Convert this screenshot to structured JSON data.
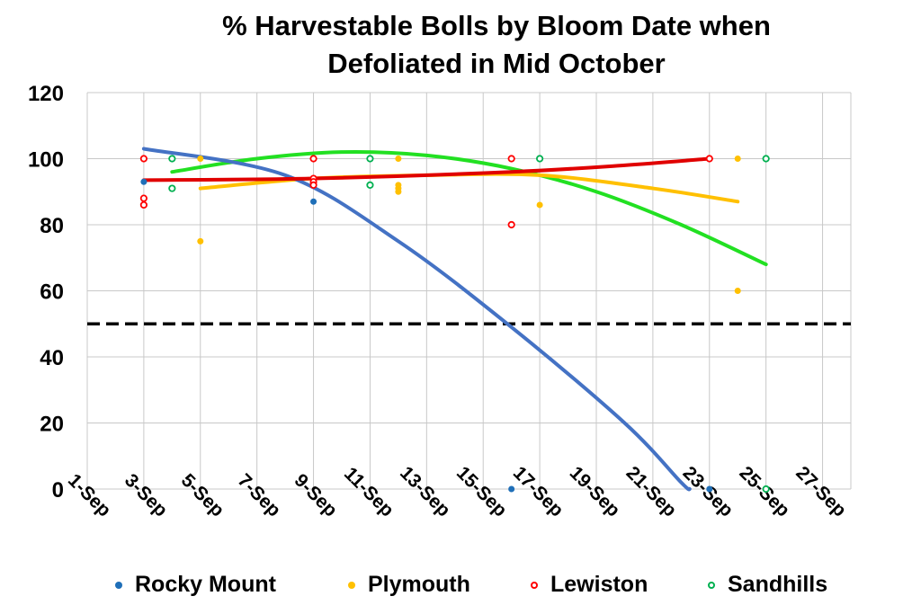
{
  "chart_data": {
    "type": "scatter",
    "title_lines": [
      "% Harvestable Bolls by Bloom Date when",
      "Defoliated in Mid October"
    ],
    "xlabel": "",
    "ylabel": "",
    "ylim": [
      0,
      120
    ],
    "y_ticks": [
      "0",
      "20",
      "40",
      "60",
      "80",
      "100",
      "120"
    ],
    "x_tick_labels": [
      "1-Sep",
      "3-Sep",
      "5-Sep",
      "7-Sep",
      "9-Sep",
      "11-Sep",
      "13-Sep",
      "15-Sep",
      "17-Sep",
      "19-Sep",
      "21-Sep",
      "23-Sep",
      "25-Sep",
      "27-Sep"
    ],
    "grid": true,
    "legend_position": "bottom",
    "reference_line": {
      "y": 50,
      "style": "dashed",
      "color": "#000000"
    },
    "series": [
      {
        "name": "Rocky Mount",
        "color": "#1f6fb8",
        "marker": "filled-circle",
        "trend_color": "#4472c4",
        "points": [
          {
            "x": "3-Sep",
            "y": 93
          },
          {
            "x": "9-Sep",
            "y": 87
          },
          {
            "x": "16-Sep",
            "y": 0
          },
          {
            "x": "23-Sep",
            "y": 0
          }
        ],
        "trend": [
          {
            "x": "3-Sep",
            "y": 103
          },
          {
            "x": "8-Sep",
            "y": 95
          },
          {
            "x": "12-Sep",
            "y": 75
          },
          {
            "x": "16-Sep",
            "y": 49
          },
          {
            "x": "20-Sep",
            "y": 20
          },
          {
            "x": "22-Sep",
            "y": 2
          },
          {
            "x": "22.3-Sep",
            "y": 0
          }
        ]
      },
      {
        "name": "Plymouth",
        "color": "#ffc000",
        "marker": "filled-circle",
        "trend_color": "#ffc000",
        "points": [
          {
            "x": "5-Sep",
            "y": 100
          },
          {
            "x": "5-Sep",
            "y": 75
          },
          {
            "x": "9-Sep",
            "y": 93
          },
          {
            "x": "12-Sep",
            "y": 100
          },
          {
            "x": "12-Sep",
            "y": 92
          },
          {
            "x": "12-Sep",
            "y": 91
          },
          {
            "x": "12-Sep",
            "y": 90
          },
          {
            "x": "17-Sep",
            "y": 86
          },
          {
            "x": "24-Sep",
            "y": 100
          },
          {
            "x": "24-Sep",
            "y": 60
          }
        ],
        "trend": [
          {
            "x": "5-Sep",
            "y": 91
          },
          {
            "x": "9-Sep",
            "y": 94
          },
          {
            "x": "13-Sep",
            "y": 95
          },
          {
            "x": "17-Sep",
            "y": 95
          },
          {
            "x": "21-Sep",
            "y": 91
          },
          {
            "x": "24-Sep",
            "y": 87
          }
        ]
      },
      {
        "name": "Lewiston",
        "color": "#ff0000",
        "marker": "open-circle",
        "trend_color": "#e00000",
        "points": [
          {
            "x": "3-Sep",
            "y": 100
          },
          {
            "x": "3-Sep",
            "y": 88
          },
          {
            "x": "3-Sep",
            "y": 86
          },
          {
            "x": "9-Sep",
            "y": 100
          },
          {
            "x": "9-Sep",
            "y": 94
          },
          {
            "x": "9-Sep",
            "y": 93
          },
          {
            "x": "9-Sep",
            "y": 92
          },
          {
            "x": "16-Sep",
            "y": 100
          },
          {
            "x": "16-Sep",
            "y": 80
          },
          {
            "x": "23-Sep",
            "y": 100
          }
        ],
        "trend": [
          {
            "x": "3-Sep",
            "y": 93.5
          },
          {
            "x": "9-Sep",
            "y": 94
          },
          {
            "x": "16-Sep",
            "y": 96
          },
          {
            "x": "20-Sep",
            "y": 98
          },
          {
            "x": "23-Sep",
            "y": 100
          }
        ]
      },
      {
        "name": "Sandhills",
        "color": "#00b050",
        "marker": "open-circle",
        "trend_color": "#22e022",
        "points": [
          {
            "x": "4-Sep",
            "y": 100
          },
          {
            "x": "4-Sep",
            "y": 91
          },
          {
            "x": "11-Sep",
            "y": 100
          },
          {
            "x": "11-Sep",
            "y": 92
          },
          {
            "x": "17-Sep",
            "y": 100
          },
          {
            "x": "25-Sep",
            "y": 100
          },
          {
            "x": "25-Sep",
            "y": 0
          }
        ],
        "trend": [
          {
            "x": "4-Sep",
            "y": 96
          },
          {
            "x": "7-Sep",
            "y": 100
          },
          {
            "x": "10-Sep",
            "y": 102
          },
          {
            "x": "13-Sep",
            "y": 101
          },
          {
            "x": "16-Sep",
            "y": 97
          },
          {
            "x": "19-Sep",
            "y": 90
          },
          {
            "x": "22-Sep",
            "y": 80
          },
          {
            "x": "25-Sep",
            "y": 68
          }
        ]
      }
    ]
  }
}
